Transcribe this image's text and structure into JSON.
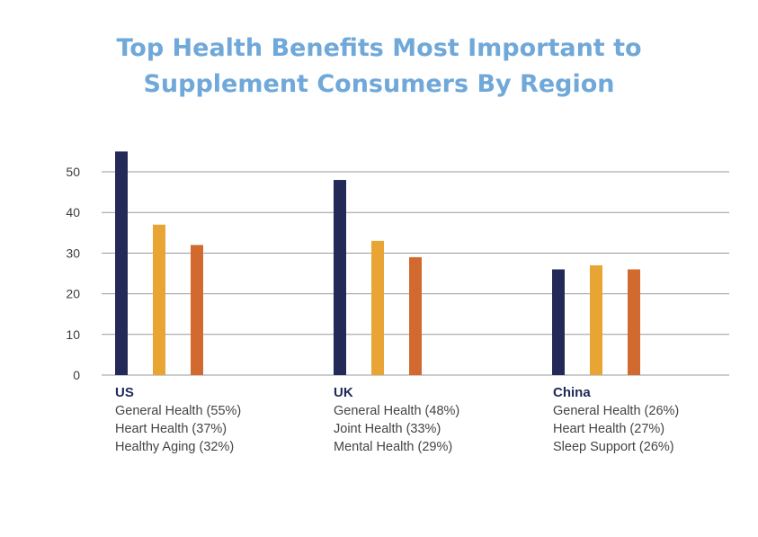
{
  "title_lines": [
    "Top Health Benefits Most Important to",
    "Supplement Consumers By Region"
  ],
  "colors": {
    "title": "#6fa8d9",
    "series": [
      "#232a58",
      "#e8a534",
      "#d2692f"
    ],
    "grid": "#9a9a9a",
    "region_name": "#1e2a58"
  },
  "chart_data": {
    "type": "bar",
    "title": "Top Health Benefits Most Important to Supplement Consumers By Region",
    "xlabel": "",
    "ylabel": "",
    "ylim": [
      0,
      50
    ],
    "yticks": [
      0,
      10,
      20,
      30,
      40,
      50
    ],
    "grid": true,
    "categories": [
      "US",
      "UK",
      "China"
    ],
    "groups": [
      {
        "region": "US",
        "values": [
          55,
          37,
          32
        ],
        "labels": [
          "General Health (55%)",
          "Heart Health (37%)",
          "Healthy Aging (32%)"
        ]
      },
      {
        "region": "UK",
        "values": [
          48,
          33,
          29
        ],
        "labels": [
          "General Health (48%)",
          "Joint Health (33%)",
          "Mental Health (29%)"
        ]
      },
      {
        "region": "China",
        "values": [
          26,
          27,
          26
        ],
        "labels": [
          "General Health (26%)",
          "Heart Health (27%)",
          "Sleep Support (26%)"
        ]
      }
    ]
  }
}
